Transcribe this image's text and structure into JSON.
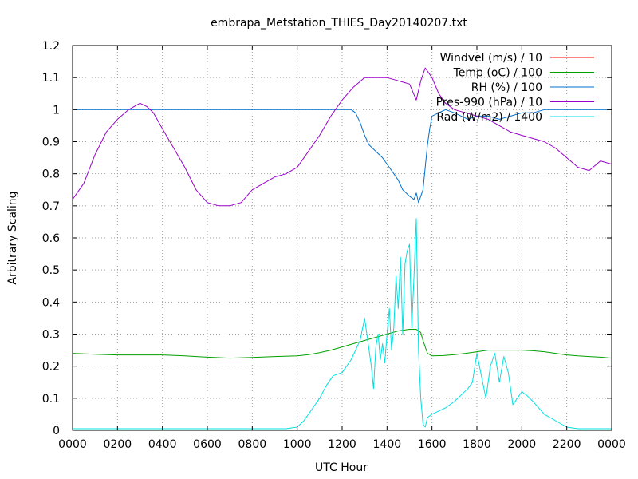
{
  "chart_data": {
    "type": "line",
    "title": "embrapa_Metstation_THIES_Day20140207.txt",
    "xlabel": "UTC Hour",
    "ylabel": "Arbitrary Scaling",
    "xlim": [
      0,
      24
    ],
    "ylim": [
      0,
      1.2
    ],
    "grid": true,
    "legend_position": "top-right",
    "x_ticks": [
      {
        "value": 0,
        "label": "0000"
      },
      {
        "value": 2,
        "label": "0200"
      },
      {
        "value": 4,
        "label": "0400"
      },
      {
        "value": 6,
        "label": "0600"
      },
      {
        "value": 8,
        "label": "0800"
      },
      {
        "value": 10,
        "label": "1000"
      },
      {
        "value": 12,
        "label": "1200"
      },
      {
        "value": 14,
        "label": "1400"
      },
      {
        "value": 16,
        "label": "1600"
      },
      {
        "value": 18,
        "label": "1800"
      },
      {
        "value": 20,
        "label": "2000"
      },
      {
        "value": 22,
        "label": "2200"
      },
      {
        "value": 24,
        "label": "0000"
      }
    ],
    "y_ticks": [
      {
        "value": 0,
        "label": "0"
      },
      {
        "value": 0.1,
        "label": "0.1"
      },
      {
        "value": 0.2,
        "label": "0.2"
      },
      {
        "value": 0.3,
        "label": "0.3"
      },
      {
        "value": 0.4,
        "label": "0.4"
      },
      {
        "value": 0.5,
        "label": "0.5"
      },
      {
        "value": 0.6,
        "label": "0.6"
      },
      {
        "value": 0.7,
        "label": "0.7"
      },
      {
        "value": 0.8,
        "label": "0.8"
      },
      {
        "value": 0.9,
        "label": "0.9"
      },
      {
        "value": 1.0,
        "label": "1"
      },
      {
        "value": 1.1,
        "label": "1.1"
      },
      {
        "value": 1.2,
        "label": "1.2"
      }
    ],
    "series": [
      {
        "name": "Windvel (m/s) / 10",
        "color": "#ff0000",
        "x": [],
        "y": []
      },
      {
        "name": "Temp (oC) / 100",
        "color": "#00a000",
        "x": [
          0,
          1,
          2,
          3,
          4,
          5,
          6,
          7,
          8,
          9,
          10,
          10.5,
          11,
          11.5,
          12,
          12.5,
          13,
          13.5,
          14,
          14.5,
          15,
          15.3,
          15.5,
          15.6,
          15.8,
          16,
          16.5,
          17,
          17.5,
          18,
          18.5,
          19,
          19.5,
          20,
          20.5,
          21,
          21.5,
          22,
          22.5,
          23,
          23.5,
          24
        ],
        "y": [
          0.24,
          0.237,
          0.235,
          0.235,
          0.235,
          0.232,
          0.228,
          0.225,
          0.227,
          0.23,
          0.232,
          0.236,
          0.242,
          0.25,
          0.26,
          0.27,
          0.28,
          0.29,
          0.3,
          0.31,
          0.315,
          0.315,
          0.305,
          0.28,
          0.24,
          0.232,
          0.233,
          0.236,
          0.24,
          0.245,
          0.25,
          0.25,
          0.25,
          0.25,
          0.248,
          0.245,
          0.24,
          0.235,
          0.232,
          0.23,
          0.228,
          0.225
        ]
      },
      {
        "name": "RH (%) / 100",
        "color": "#0070d0",
        "x": [
          0,
          12,
          12.4,
          12.6,
          12.8,
          13,
          13.2,
          13.5,
          13.8,
          14,
          14.2,
          14.5,
          14.7,
          15,
          15.2,
          15.3,
          15.4,
          15.5,
          15.6,
          15.7,
          15.8,
          15.9,
          16,
          16.3,
          16.6,
          17,
          17.3,
          17.6,
          18,
          18.5,
          19,
          19.5,
          20,
          20.5,
          21,
          21.5,
          22,
          24
        ],
        "y": [
          1.0,
          1.0,
          1.0,
          0.99,
          0.96,
          0.92,
          0.89,
          0.87,
          0.85,
          0.83,
          0.81,
          0.78,
          0.75,
          0.73,
          0.72,
          0.74,
          0.71,
          0.73,
          0.75,
          0.82,
          0.89,
          0.94,
          0.98,
          0.99,
          1.0,
          0.99,
          0.98,
          0.97,
          0.98,
          0.98,
          0.97,
          0.98,
          0.99,
          0.99,
          1.0,
          1.0,
          1.0,
          1.0
        ]
      },
      {
        "name": "Pres-990 (hPa) / 10",
        "color": "#9900cc",
        "x": [
          0,
          0.5,
          1,
          1.5,
          2,
          2.5,
          3,
          3.3,
          3.6,
          4,
          4.5,
          5,
          5.5,
          6,
          6.5,
          7,
          7.5,
          8,
          8.5,
          9,
          9.5,
          10,
          10.5,
          11,
          11.5,
          12,
          12.5,
          13,
          13.5,
          14,
          14.5,
          15,
          15.3,
          15.5,
          15.7,
          16,
          16.3,
          16.6,
          17,
          17.5,
          18,
          18.5,
          19,
          19.5,
          20,
          20.5,
          21,
          21.5,
          22,
          22.5,
          23,
          23.5,
          24
        ],
        "y": [
          0.72,
          0.77,
          0.86,
          0.93,
          0.97,
          1.0,
          1.02,
          1.01,
          0.99,
          0.94,
          0.88,
          0.82,
          0.75,
          0.71,
          0.7,
          0.7,
          0.71,
          0.75,
          0.77,
          0.79,
          0.8,
          0.82,
          0.87,
          0.92,
          0.98,
          1.03,
          1.07,
          1.1,
          1.1,
          1.1,
          1.09,
          1.08,
          1.03,
          1.09,
          1.13,
          1.1,
          1.05,
          1.02,
          1.0,
          0.99,
          0.98,
          0.97,
          0.95,
          0.93,
          0.92,
          0.91,
          0.9,
          0.88,
          0.85,
          0.82,
          0.81,
          0.84,
          0.83
        ]
      },
      {
        "name": "Rad (W/m2) / 1400",
        "color": "#00e0e0",
        "x": [
          0,
          9.5,
          10,
          10.3,
          10.6,
          11,
          11.3,
          11.6,
          12,
          12.2,
          12.4,
          12.6,
          12.8,
          13,
          13.1,
          13.2,
          13.3,
          13.4,
          13.5,
          13.6,
          13.7,
          13.8,
          13.9,
          14,
          14.1,
          14.2,
          14.3,
          14.4,
          14.5,
          14.6,
          14.7,
          14.8,
          14.9,
          15,
          15.1,
          15.2,
          15.3,
          15.4,
          15.5,
          15.6,
          15.7,
          15.8,
          16,
          16.3,
          16.6,
          17,
          17.3,
          17.6,
          17.8,
          18,
          18.2,
          18.4,
          18.6,
          18.8,
          19,
          19.2,
          19.4,
          19.6,
          19.8,
          20,
          20.2,
          20.5,
          21,
          21.5,
          22,
          22.5,
          23,
          24
        ],
        "y": [
          0.005,
          0.005,
          0.01,
          0.03,
          0.06,
          0.1,
          0.14,
          0.17,
          0.18,
          0.2,
          0.22,
          0.25,
          0.28,
          0.35,
          0.3,
          0.25,
          0.2,
          0.13,
          0.26,
          0.3,
          0.22,
          0.27,
          0.21,
          0.3,
          0.38,
          0.25,
          0.32,
          0.48,
          0.38,
          0.54,
          0.3,
          0.52,
          0.56,
          0.58,
          0.32,
          0.48,
          0.66,
          0.25,
          0.1,
          0.02,
          0.01,
          0.04,
          0.05,
          0.06,
          0.07,
          0.09,
          0.11,
          0.13,
          0.15,
          0.24,
          0.17,
          0.1,
          0.2,
          0.24,
          0.15,
          0.23,
          0.18,
          0.08,
          0.1,
          0.12,
          0.11,
          0.09,
          0.05,
          0.03,
          0.01,
          0.005,
          0.005,
          0.005
        ]
      }
    ]
  }
}
